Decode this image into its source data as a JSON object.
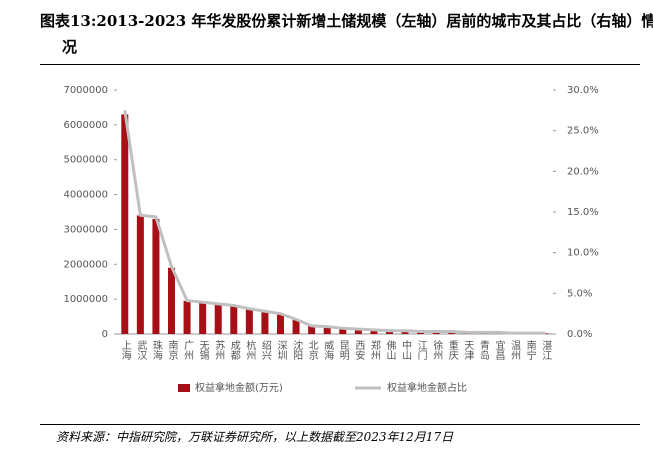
{
  "chart_data": {
    "type": "bar-line",
    "title": "图表13:2013-2023 年华发股份累计新增土储规模（左轴）居前的城市及其占比（右轴）情况",
    "source": "资料来源：中指研究院，万联证券研究所，以上数据截至2023年12月17日",
    "categories": [
      "上海",
      "武汉",
      "珠海",
      "南京",
      "广州",
      "无锡",
      "苏州",
      "成都",
      "杭州",
      "绍兴",
      "深圳",
      "沈阳",
      "北京",
      "威海",
      "昆明",
      "西安",
      "郑州",
      "佛山",
      "中山",
      "江门",
      "徐州",
      "重庆",
      "天津",
      "青岛",
      "宜昌",
      "温州",
      "南宁",
      "湛江"
    ],
    "series": [
      {
        "name": "权益拿地金额(万元)",
        "color": "#a50f15",
        "type": "bar",
        "values": [
          6300000,
          3400000,
          3300000,
          1900000,
          950000,
          900000,
          850000,
          800000,
          700000,
          630000,
          580000,
          420000,
          230000,
          200000,
          170000,
          140000,
          120000,
          100000,
          90000,
          80000,
          70000,
          60000,
          50000,
          40000,
          35000,
          30000,
          25000,
          20000
        ]
      },
      {
        "name": "权益拿地金额占比",
        "color": "#c0c0c0",
        "type": "line",
        "axis": "y2",
        "values": [
          27.5,
          14.6,
          14.4,
          8.3,
          4.1,
          3.9,
          3.7,
          3.5,
          3.1,
          2.8,
          2.5,
          1.8,
          1.0,
          0.9,
          0.7,
          0.6,
          0.5,
          0.4,
          0.4,
          0.3,
          0.3,
          0.3,
          0.2,
          0.2,
          0.2,
          0.1,
          0.1,
          0.1
        ]
      }
    ],
    "ylim": [
      0,
      7000000
    ],
    "yticks": [
      0,
      1000000,
      2000000,
      3000000,
      4000000,
      5000000,
      6000000,
      7000000
    ],
    "y2lim": [
      0,
      30
    ],
    "y2ticks": [
      {
        "value": 0,
        "label": "0.0%"
      },
      {
        "value": 5,
        "label": "5.0%"
      },
      {
        "value": 10,
        "label": "10.0%"
      },
      {
        "value": 15,
        "label": "15.0%"
      },
      {
        "value": 20,
        "label": "20.0%"
      },
      {
        "value": 25,
        "label": "25.0%"
      },
      {
        "value": 30,
        "label": "30.0%"
      }
    ]
  }
}
